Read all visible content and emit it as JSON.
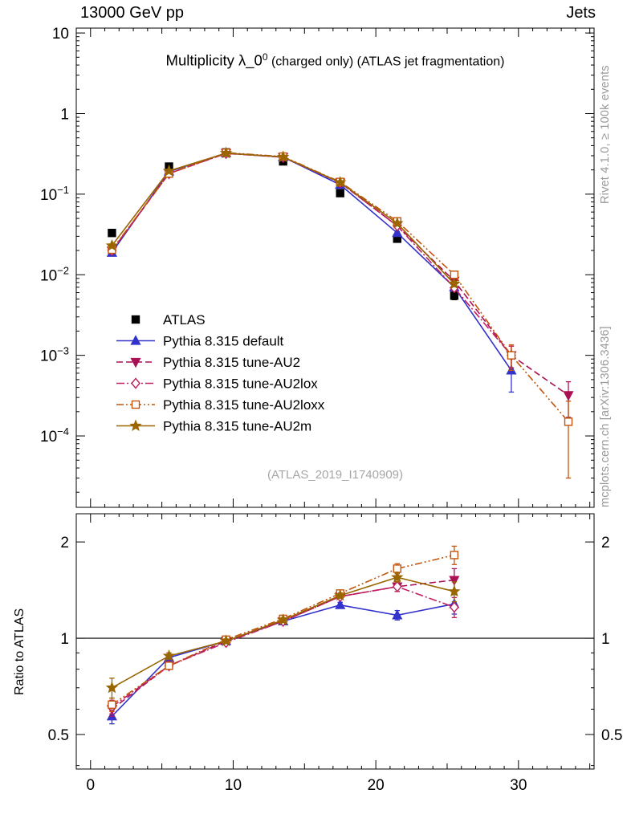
{
  "header": {
    "left": "13000 GeV pp",
    "right": "Jets"
  },
  "title": {
    "part1": "Multiplicity λ_0",
    "sup": "0",
    "part2": " (charged only) (ATLAS jet fragmentation)"
  },
  "watermark": "(ATLAS_2019_I1740909)",
  "sidebar_right": {
    "top": "Rivet 4.1.0, ≥ 100k events",
    "bottom": "mcplots.cern.ch [arXiv:1306.3436]"
  },
  "ratio_axis_label": "Ratio to ATLAS",
  "chart_data": [
    {
      "type": "line",
      "panel": "main",
      "yscale": "log",
      "xlim": [
        -1,
        35.3
      ],
      "ylim": [
        1.3e-05,
        11.5
      ],
      "xticks": [
        0,
        10,
        20,
        30
      ],
      "ytick_exponents": [
        1,
        0,
        -1,
        -2,
        -3,
        -4
      ],
      "legend_position": "inside-left-bottom",
      "grid": false,
      "x": [
        1.5,
        5.5,
        9.5,
        13.5,
        17.5,
        21.5,
        25.5,
        29.5,
        33.5
      ],
      "series": [
        {
          "name": "ATLAS",
          "color": "#000000",
          "marker": "square",
          "filled": true,
          "line": "none",
          "values": [
            0.033,
            0.22,
            0.33,
            0.255,
            0.103,
            0.028,
            0.0055,
            null,
            null
          ],
          "errs": [
            0.003,
            0.012,
            0.015,
            0.012,
            0.006,
            0.002,
            0.0006,
            null,
            null
          ]
        },
        {
          "name": "Pythia 8.315 default",
          "color": "#3333cc",
          "marker": "triangle-up",
          "filled": true,
          "line": "solid",
          "values": [
            0.0188,
            0.191,
            0.323,
            0.289,
            0.131,
            0.033,
            0.007,
            0.00065,
            null
          ],
          "errs": [
            0.001,
            0.004,
            0.006,
            0.005,
            0.003,
            0.0012,
            0.0005,
            0.0003,
            null
          ]
        },
        {
          "name": "Pythia 8.315 tune-AU2",
          "color": "#aa1155",
          "marker": "triangle-down",
          "filled": true,
          "line": "dashed",
          "values": [
            0.0198,
            0.18,
            0.323,
            0.288,
            0.139,
            0.0405,
            0.0084,
            0.001,
            0.00032
          ],
          "errs": [
            0.001,
            0.004,
            0.006,
            0.005,
            0.003,
            0.0013,
            0.0006,
            0.0003,
            0.00015
          ]
        },
        {
          "name": "Pythia 8.315 tune-AU2lox",
          "color": "#c02060",
          "marker": "diamond",
          "filled": false,
          "line": "dashdot",
          "values": [
            0.02,
            0.18,
            0.32,
            0.288,
            0.139,
            0.0405,
            0.0069,
            0.001,
            null
          ],
          "errs": [
            0.001,
            0.004,
            0.006,
            0.005,
            0.003,
            0.0013,
            0.0006,
            0.0003,
            null
          ]
        },
        {
          "name": "Pythia 8.315 tune-AU2loxx",
          "color": "#c4540a",
          "marker": "square",
          "filled": false,
          "line": "dashdotdot",
          "values": [
            0.0205,
            0.18,
            0.327,
            0.293,
            0.142,
            0.046,
            0.01,
            0.001,
            0.00015
          ],
          "errs": [
            0.001,
            0.004,
            0.006,
            0.005,
            0.003,
            0.0016,
            0.0008,
            0.00035,
            0.00012
          ]
        },
        {
          "name": "Pythia 8.315 tune-AU2m",
          "color": "#996600",
          "marker": "star",
          "filled": true,
          "line": "solid",
          "values": [
            0.023,
            0.194,
            0.323,
            0.29,
            0.14,
            0.0435,
            0.0077,
            null,
            null
          ],
          "errs": [
            0.001,
            0.004,
            0.006,
            0.005,
            0.003,
            0.0013,
            0.0006,
            null,
            null
          ]
        }
      ]
    },
    {
      "type": "line",
      "panel": "ratio",
      "yscale": "log",
      "xlim": [
        -1,
        35.3
      ],
      "ylim": [
        0.39,
        2.45
      ],
      "xticks": [
        0,
        10,
        20,
        30
      ],
      "yticks": [
        0.5,
        1,
        2
      ],
      "yticklabels": [
        "0.5",
        "1",
        "2"
      ],
      "reference_line": 1,
      "grid": false,
      "x": [
        1.5,
        5.5,
        9.5,
        13.5,
        17.5,
        21.5,
        25.5
      ],
      "series": [
        {
          "name": "Pythia 8.315 default",
          "color": "#3333cc",
          "marker": "triangle-up",
          "filled": true,
          "line": "solid",
          "values": [
            0.57,
            0.87,
            0.98,
            1.13,
            1.27,
            1.18,
            1.28
          ],
          "errs": [
            0.03,
            0.02,
            0.015,
            0.02,
            0.025,
            0.04,
            0.09
          ]
        },
        {
          "name": "Pythia 8.315 tune-AU2",
          "color": "#aa1155",
          "marker": "triangle-down",
          "filled": true,
          "line": "dashed",
          "values": [
            0.6,
            0.82,
            0.98,
            1.13,
            1.35,
            1.45,
            1.52
          ],
          "errs": [
            0.03,
            0.02,
            0.015,
            0.02,
            0.025,
            0.05,
            0.13
          ]
        },
        {
          "name": "Pythia 8.315 tune-AU2lox",
          "color": "#c02060",
          "marker": "diamond",
          "filled": false,
          "line": "dashdot",
          "values": [
            0.61,
            0.82,
            0.97,
            1.13,
            1.35,
            1.45,
            1.25
          ],
          "errs": [
            0.03,
            0.02,
            0.015,
            0.02,
            0.025,
            0.05,
            0.09
          ]
        },
        {
          "name": "Pythia 8.315 tune-AU2loxx",
          "color": "#c4540a",
          "marker": "square",
          "filled": false,
          "line": "dashdotdot",
          "values": [
            0.62,
            0.82,
            0.99,
            1.15,
            1.38,
            1.65,
            1.82
          ],
          "errs": [
            0.03,
            0.02,
            0.015,
            0.02,
            0.025,
            0.06,
            0.12
          ]
        },
        {
          "name": "Pythia 8.315 tune-AU2m",
          "color": "#996600",
          "marker": "star",
          "filled": true,
          "line": "solid",
          "values": [
            0.7,
            0.88,
            0.98,
            1.14,
            1.36,
            1.55,
            1.4
          ],
          "errs": [
            0.05,
            0.02,
            0.015,
            0.02,
            0.025,
            0.05,
            0.1
          ]
        }
      ]
    }
  ]
}
